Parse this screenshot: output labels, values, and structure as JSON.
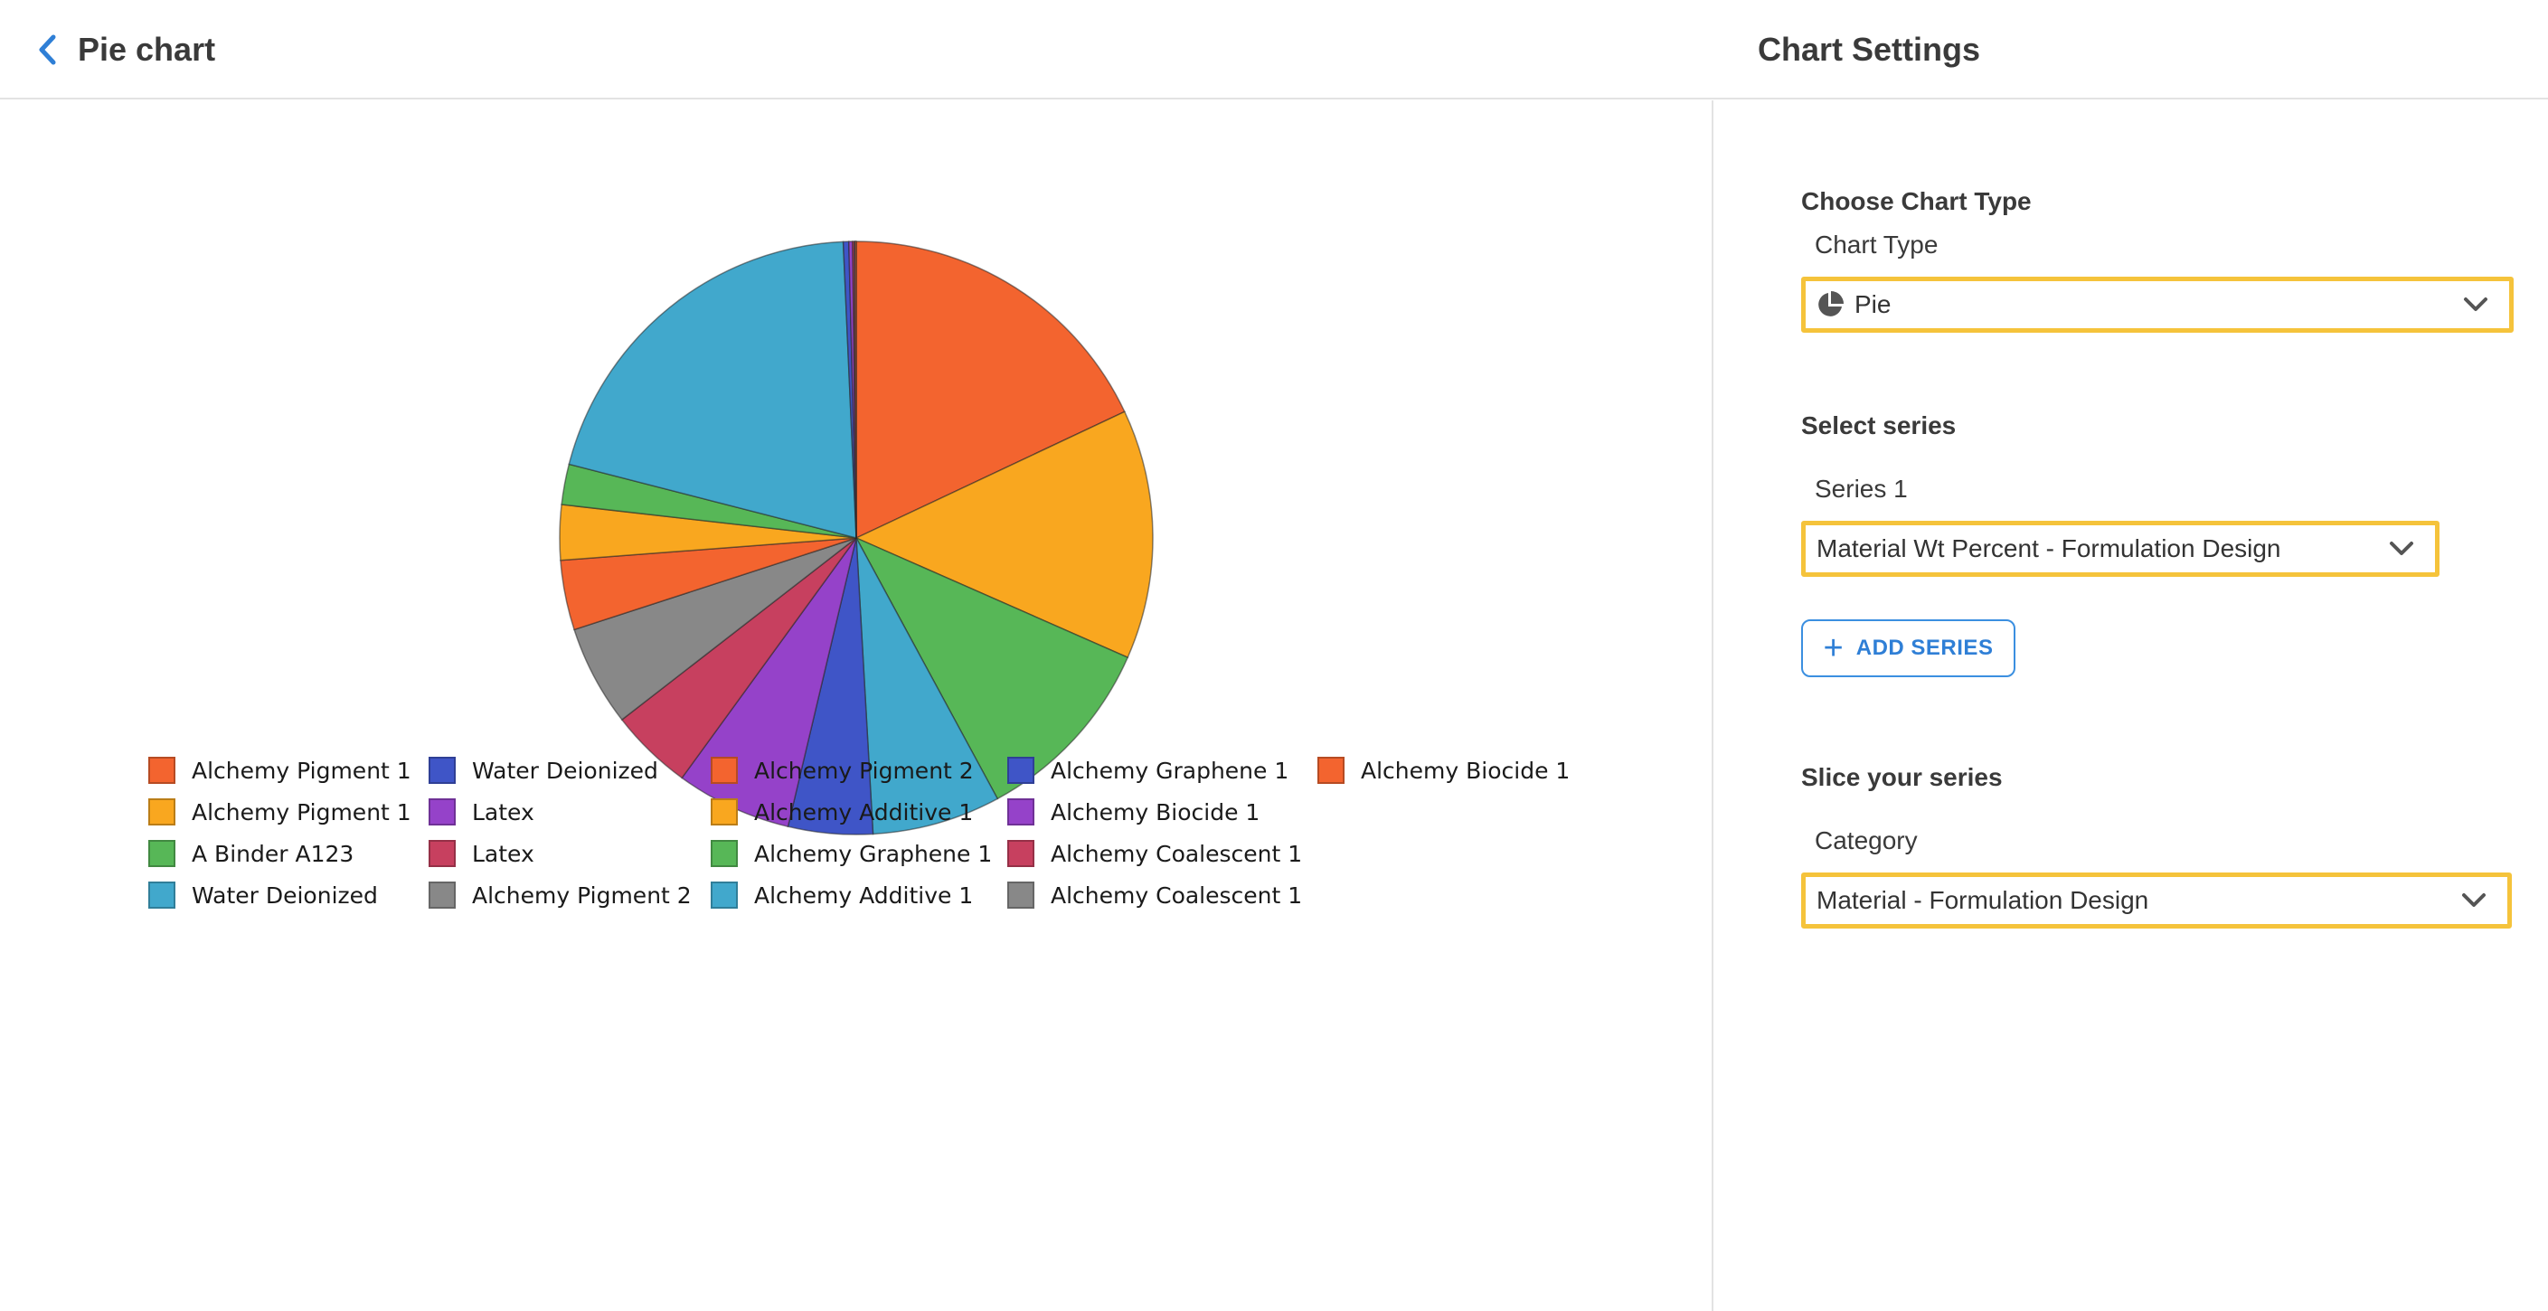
{
  "header": {
    "title": "Pie chart",
    "settings_title": "Chart Settings"
  },
  "settings": {
    "chart_type": {
      "section_label": "Choose Chart Type",
      "field_label": "Chart Type",
      "value": "Pie",
      "icon": "pie-chart-icon"
    },
    "series": {
      "section_label": "Select series",
      "field_label": "Series 1",
      "value": "Material Wt Percent - Formulation Design",
      "add_label": "ADD SERIES"
    },
    "slice": {
      "section_label": "Slice your series",
      "field_label": "Category",
      "value": "Material - Formulation Design"
    },
    "highlight_color": "#f5c33b",
    "accent_color": "#2f7fd6"
  },
  "chart_data": {
    "type": "pie",
    "series": [
      {
        "name": "Material Wt Percent - Formulation Design"
      }
    ],
    "slices": [
      {
        "label": "Alchemy Pigment 1",
        "value": 18.0,
        "color": "#f3642f"
      },
      {
        "label": "Alchemy Pigment 1",
        "value": 13.6,
        "color": "#f9a71f"
      },
      {
        "label": "A Binder A123",
        "value": 10.5,
        "color": "#57b757"
      },
      {
        "label": "Water Deionized",
        "value": 7.0,
        "color": "#41a8cc"
      },
      {
        "label": "Water Deionized",
        "value": 4.6,
        "color": "#3f55c7"
      },
      {
        "label": "Latex",
        "value": 6.3,
        "color": "#9542c9"
      },
      {
        "label": "Latex",
        "value": 4.5,
        "color": "#c7405f"
      },
      {
        "label": "Alchemy Pigment 2",
        "value": 5.5,
        "color": "#888888"
      },
      {
        "label": "Alchemy Pigment 2",
        "value": 3.8,
        "color": "#f3642f"
      },
      {
        "label": "Alchemy Additive 1",
        "value": 3.0,
        "color": "#f9a71f"
      },
      {
        "label": "Alchemy Graphene 1",
        "value": 2.2,
        "color": "#57b757"
      },
      {
        "label": "Alchemy Additive 1",
        "value": 20.3,
        "color": "#41a8cc"
      },
      {
        "label": "Alchemy Graphene 1",
        "value": 0.3,
        "color": "#3f55c7"
      },
      {
        "label": "Alchemy Biocide 1",
        "value": 0.2,
        "color": "#9542c9"
      },
      {
        "label": "Alchemy Coalescent 1",
        "value": 0.1,
        "color": "#c7405f"
      },
      {
        "label": "Alchemy Coalescent 1",
        "value": 0.05,
        "color": "#888888"
      },
      {
        "label": "Alchemy Biocide 1",
        "value": 0.05,
        "color": "#f3642f"
      }
    ],
    "legend_position": "bottom"
  }
}
